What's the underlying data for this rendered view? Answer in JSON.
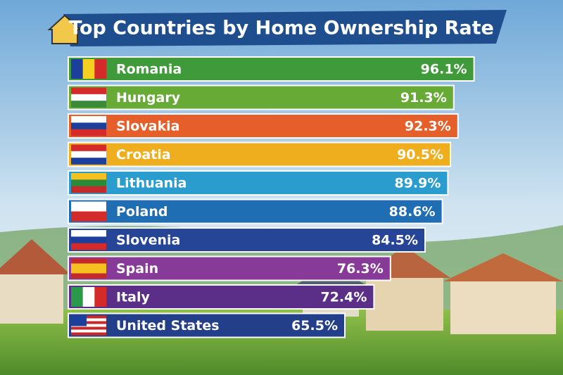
{
  "chart_data": {
    "type": "bar",
    "orientation": "horizontal",
    "title": "Top Countries by Home Ownership Rate",
    "categories": [
      "Romania",
      "Hungary",
      "Slovakia",
      "Croatia",
      "Lithuania",
      "Poland",
      "Slovenia",
      "Spain",
      "Italy",
      "United States"
    ],
    "values": [
      96.1,
      91.3,
      92.3,
      90.5,
      89.9,
      88.6,
      84.5,
      76.3,
      72.4,
      65.5
    ],
    "value_labels": [
      "96.1%",
      "91.3%",
      "92.3%",
      "90.5%",
      "89.9%",
      "88.6%",
      "84.5%",
      "76.3%",
      "72.4%",
      "65.5%"
    ],
    "colors": [
      "#3f9a3a",
      "#67ab36",
      "#e65f2a",
      "#eeae1e",
      "#2a9ccd",
      "#1f6db3",
      "#274597",
      "#873a97",
      "#5b2f88",
      "#233f8a"
    ]
  }
}
